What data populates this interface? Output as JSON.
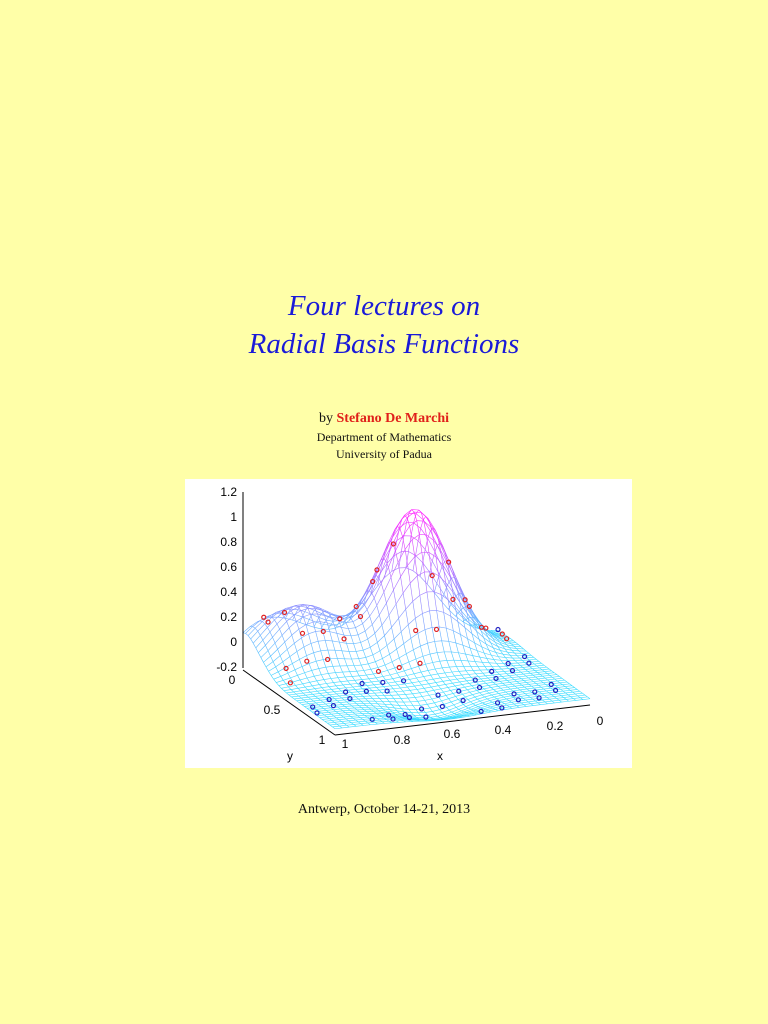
{
  "title": {
    "line1": "Four lectures on",
    "line2": "Radial Basis Functions"
  },
  "author": {
    "prefix": "by",
    "name": "Stefano De Marchi",
    "department": "Department of Mathematics",
    "university": "University of Padua"
  },
  "figure": {
    "z_ticks": [
      "1.2",
      "1",
      "0.8",
      "0.6",
      "0.4",
      "0.2",
      "0",
      "-0.2"
    ],
    "y_ticks": [
      "0",
      "0.5",
      "1"
    ],
    "x_ticks": [
      "1",
      "0.8",
      "0.6",
      "0.4",
      "0.2",
      "0"
    ],
    "x_label": "x",
    "y_label": "y"
  },
  "footer": "Antwerp, October 14-21, 2013"
}
